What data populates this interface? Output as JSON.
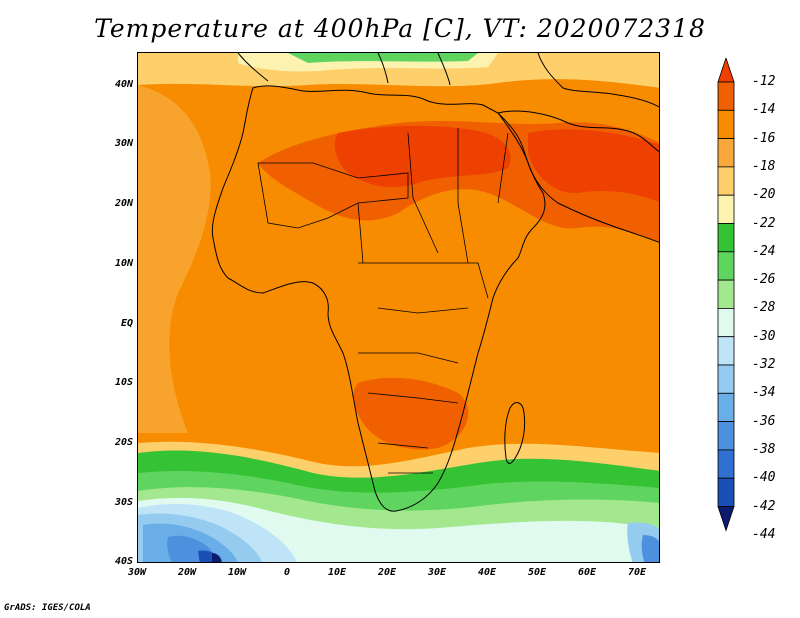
{
  "title": "Temperature at 400hPa [C], VT: 2020072318",
  "credit": "GrADS: IGES/COLA",
  "map": {
    "lat_labels": [
      "40N",
      "30N",
      "20N",
      "10N",
      "EQ",
      "10S",
      "20S",
      "30S",
      "40S"
    ],
    "lon_labels": [
      "30W",
      "20W",
      "10W",
      "0",
      "10E",
      "20E",
      "30E",
      "40E",
      "50E",
      "60E",
      "70E"
    ],
    "lat_range": [
      -40,
      45
    ],
    "lon_range": [
      -30,
      75
    ],
    "variable": "temperature",
    "level": "400hPa",
    "units": "C",
    "valid_time": "2020072318"
  },
  "colorbar": {
    "labels": [
      "-12",
      "-14",
      "-16",
      "-18",
      "-20",
      "-22",
      "-24",
      "-26",
      "-28",
      "-30",
      "-32",
      "-34",
      "-36",
      "-38",
      "-40",
      "-42",
      "-44"
    ],
    "colors": [
      "#ee4000",
      "#f06000",
      "#f88c00",
      "#f9a93b",
      "#fdd06c",
      "#fdf3b0",
      "#35c235",
      "#5fd45f",
      "#a3e88f",
      "#e0faf0",
      "#bfe4f7",
      "#94cbef",
      "#6aaee8",
      "#4c90de",
      "#3070d0",
      "#1a4fb5",
      "#0c1b70"
    ]
  }
}
